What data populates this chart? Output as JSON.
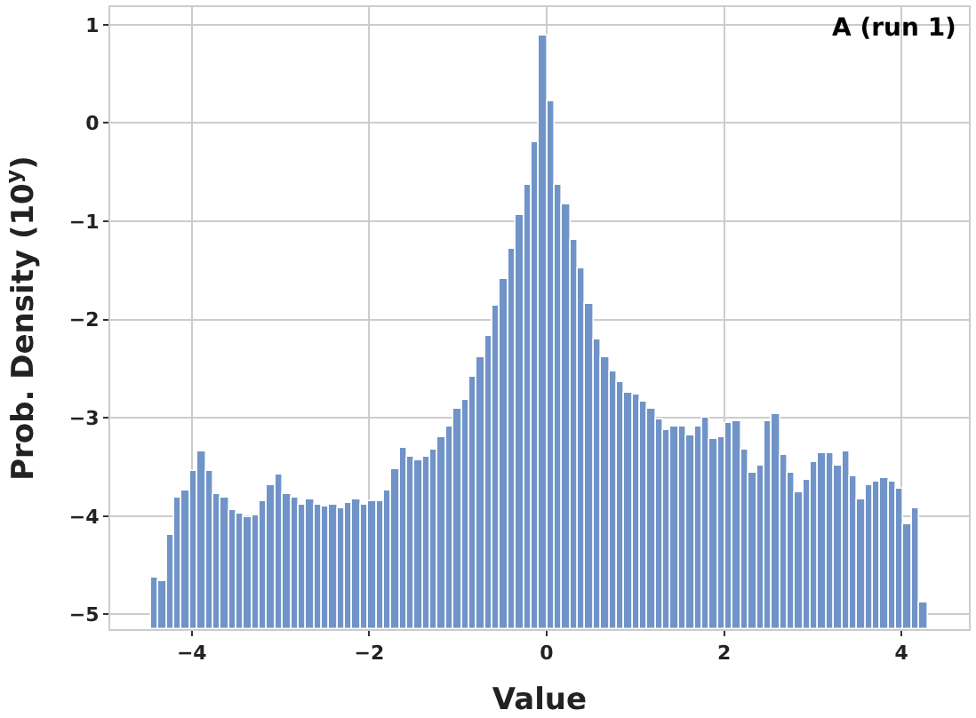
{
  "chart_data": {
    "type": "histogram",
    "xlabel": "Value",
    "ylabel": "Prob. Density (10$^{y}$)",
    "annotations": [
      "A (run 1)"
    ],
    "bins": [
      -4.46,
      -4.3725,
      -4.285,
      -4.1975,
      -4.11,
      -4.0225,
      -3.935,
      -3.8475,
      -3.76,
      -3.6725,
      -3.585,
      -3.4975,
      -3.41,
      -3.3225,
      -3.235,
      -3.1475,
      -3.06,
      -2.9725,
      -2.885,
      -2.7975,
      -2.71,
      -2.6225,
      -2.535,
      -2.4475,
      -2.36,
      -2.2725,
      -2.185,
      -2.0975,
      -2.01,
      -1.9225,
      -1.835,
      -1.7475,
      -1.66,
      -1.5725,
      -1.485,
      -1.3975,
      -1.31,
      -1.2225,
      -1.135,
      -1.0475,
      -0.96,
      -0.8725,
      -0.785,
      -0.6975,
      -0.61,
      -0.5225,
      -0.435,
      -0.3475,
      -0.26,
      -0.1725,
      -0.085,
      0.0025,
      0.09,
      0.1775,
      0.265,
      0.3525,
      0.44,
      0.5275,
      0.615,
      0.7025,
      0.79,
      0.8775,
      0.965,
      1.0525,
      1.14,
      1.2275,
      1.315,
      1.4025,
      1.49,
      1.5775,
      1.665,
      1.7525,
      1.84,
      1.9275,
      2.015,
      2.1025,
      2.19,
      2.2775,
      2.365,
      2.4525,
      2.54,
      2.6275,
      2.715,
      2.8025,
      2.89,
      2.9775,
      3.065,
      3.1525,
      3.24,
      3.3275,
      3.415,
      3.5025,
      3.59,
      3.6775,
      3.765,
      3.8525,
      3.94,
      4.0275,
      4.115,
      4.2025,
      4.29
    ],
    "values": [
      0.53,
      0.48,
      0.96,
      1.34,
      1.41,
      1.61,
      1.81,
      1.61,
      1.37,
      1.34,
      1.21,
      1.18,
      1.14,
      1.16,
      1.3,
      1.46,
      1.57,
      1.37,
      1.34,
      1.27,
      1.32,
      1.27,
      1.25,
      1.27,
      1.23,
      1.28,
      1.32,
      1.27,
      1.3,
      1.3,
      1.41,
      1.63,
      1.84,
      1.75,
      1.72,
      1.75,
      1.82,
      1.95,
      2.07,
      2.25,
      2.34,
      2.56,
      2.76,
      2.99,
      3.3,
      3.56,
      3.87,
      4.21,
      4.53,
      4.95,
      6.04,
      5.38,
      4.52,
      4.32,
      3.96,
      3.67,
      3.31,
      2.95,
      2.76,
      2.63,
      2.52,
      2.4,
      2.38,
      2.31,
      2.24,
      2.13,
      2.02,
      2.06,
      2.07,
      1.97,
      2.07,
      2.16,
      1.93,
      1.95,
      2.09,
      2.11,
      1.82,
      1.59,
      1.66,
      2.11,
      2.18,
      1.77,
      1.59,
      1.39,
      1.52,
      1.7,
      1.79,
      1.79,
      1.66,
      1.81,
      1.55,
      1.32,
      1.46,
      1.5,
      1.54,
      1.5,
      1.43,
      1.07,
      1.23,
      0.28
    ],
    "base": [
      -5.15,
      -5.15,
      -5.15,
      -5.15,
      -5.15,
      -5.15,
      -5.15,
      -5.15,
      -5.15,
      -5.15,
      -5.15,
      -5.15,
      -5.15,
      -5.15,
      -5.15,
      -5.15,
      -5.15,
      -5.15,
      -5.15,
      -5.15,
      -5.15,
      -5.15,
      -5.15,
      -5.15,
      -5.15,
      -5.15,
      -5.15,
      -5.15,
      -5.15,
      -5.15,
      -5.15,
      -5.15,
      -5.15,
      -5.15,
      -5.15,
      -5.15,
      -5.15,
      -5.15,
      -5.15,
      -5.15,
      -5.15,
      -5.15,
      -5.15,
      -5.15,
      -5.15,
      -5.15,
      -5.15,
      -5.15,
      -5.15,
      -5.15,
      -5.15,
      -5.15,
      -5.15,
      -5.15,
      -5.15,
      -5.15,
      -5.15,
      -5.15,
      -5.15,
      -5.15,
      -5.15,
      -5.15,
      -5.15,
      -5.15,
      -5.15,
      -5.15,
      -5.15,
      -5.15,
      -5.15,
      -5.15,
      -5.15,
      -5.15,
      -5.15,
      -5.15,
      -5.15,
      -5.15,
      -5.15,
      -5.15,
      -5.15,
      -5.15,
      -5.15,
      -5.15,
      -5.15,
      -5.15,
      -5.15,
      -5.15,
      -5.15,
      -5.15,
      -5.15,
      -5.15,
      -5.15,
      -5.15,
      -5.15,
      -5.15,
      -5.15,
      -5.15,
      -5.15,
      -5.15,
      -5.15,
      -5.15
    ],
    "color": "#7094c8",
    "xlim": [
      -4.92,
      4.76
    ],
    "xticks": [
      {
        "value": -4,
        "label": "−4"
      },
      {
        "value": -2,
        "label": "−2"
      },
      0,
      2,
      4
    ],
    "ylim": [
      -5.15,
      1.18
    ],
    "yticks": [
      {
        "value": -5,
        "label": "−5"
      },
      {
        "value": -4,
        "label": "−4"
      },
      {
        "value": -3,
        "label": "−3"
      },
      {
        "value": -2,
        "label": "−2"
      },
      {
        "value": -1,
        "label": "−1"
      },
      0,
      1
    ],
    "grid": true
  }
}
